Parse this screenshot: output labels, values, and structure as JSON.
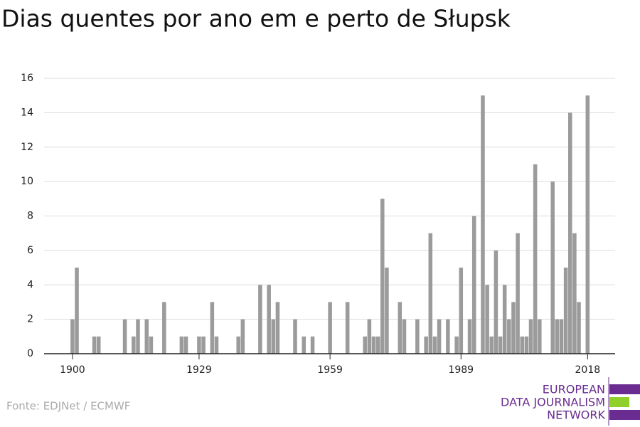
{
  "chart_data": {
    "type": "bar",
    "title": "Dias quentes por ano em e perto de Słupsk",
    "source": "Fonte: EDJNet / ECMWF",
    "logo": [
      "EUROPEAN",
      "DATA JOURNALISM",
      "NETWORK"
    ],
    "color": "#9b9b9b",
    "x": [
      1900,
      1901,
      1902,
      1903,
      1904,
      1905,
      1906,
      1907,
      1908,
      1909,
      1910,
      1911,
      1912,
      1913,
      1914,
      1915,
      1916,
      1917,
      1918,
      1919,
      1920,
      1921,
      1922,
      1923,
      1924,
      1925,
      1926,
      1927,
      1928,
      1929,
      1930,
      1931,
      1932,
      1933,
      1934,
      1935,
      1936,
      1937,
      1938,
      1939,
      1940,
      1941,
      1942,
      1943,
      1944,
      1945,
      1946,
      1947,
      1948,
      1949,
      1950,
      1951,
      1952,
      1953,
      1954,
      1955,
      1956,
      1957,
      1958,
      1959,
      1960,
      1961,
      1962,
      1963,
      1964,
      1965,
      1966,
      1967,
      1968,
      1969,
      1970,
      1971,
      1972,
      1973,
      1974,
      1975,
      1976,
      1977,
      1978,
      1979,
      1980,
      1981,
      1982,
      1983,
      1984,
      1985,
      1986,
      1987,
      1988,
      1989,
      1990,
      1991,
      1992,
      1993,
      1994,
      1995,
      1996,
      1997,
      1998,
      1999,
      2000,
      2001,
      2002,
      2003,
      2004,
      2005,
      2006,
      2007,
      2008,
      2009,
      2010,
      2011,
      2012,
      2013,
      2014,
      2015,
      2016,
      2017,
      2018
    ],
    "values": [
      2,
      5,
      0,
      0,
      0,
      1,
      1,
      0,
      0,
      0,
      0,
      0,
      2,
      0,
      1,
      2,
      0,
      2,
      1,
      0,
      0,
      3,
      0,
      0,
      0,
      1,
      1,
      0,
      0,
      1,
      1,
      0,
      3,
      1,
      0,
      0,
      0,
      0,
      1,
      2,
      0,
      0,
      0,
      4,
      0,
      4,
      2,
      3,
      0,
      0,
      0,
      2,
      0,
      1,
      0,
      1,
      0,
      0,
      0,
      3,
      0,
      0,
      0,
      3,
      0,
      0,
      0,
      1,
      2,
      1,
      1,
      9,
      5,
      0,
      0,
      3,
      2,
      0,
      0,
      2,
      0,
      1,
      7,
      1,
      2,
      0,
      2,
      0,
      1,
      5,
      0,
      2,
      8,
      0,
      15,
      4,
      1,
      6,
      1,
      4,
      2,
      3,
      7,
      1,
      1,
      2,
      11,
      2,
      0,
      0,
      10,
      2,
      2,
      5,
      14,
      7,
      3,
      0,
      15
    ],
    "xlim": [
      1893.5,
      2024.3
    ],
    "xticks": [
      1900,
      1929,
      1959,
      1989,
      2018
    ],
    "ylim": [
      0,
      16
    ],
    "yticks": [
      0,
      2,
      4,
      6,
      8,
      10,
      12,
      14,
      16
    ],
    "grid": true
  }
}
